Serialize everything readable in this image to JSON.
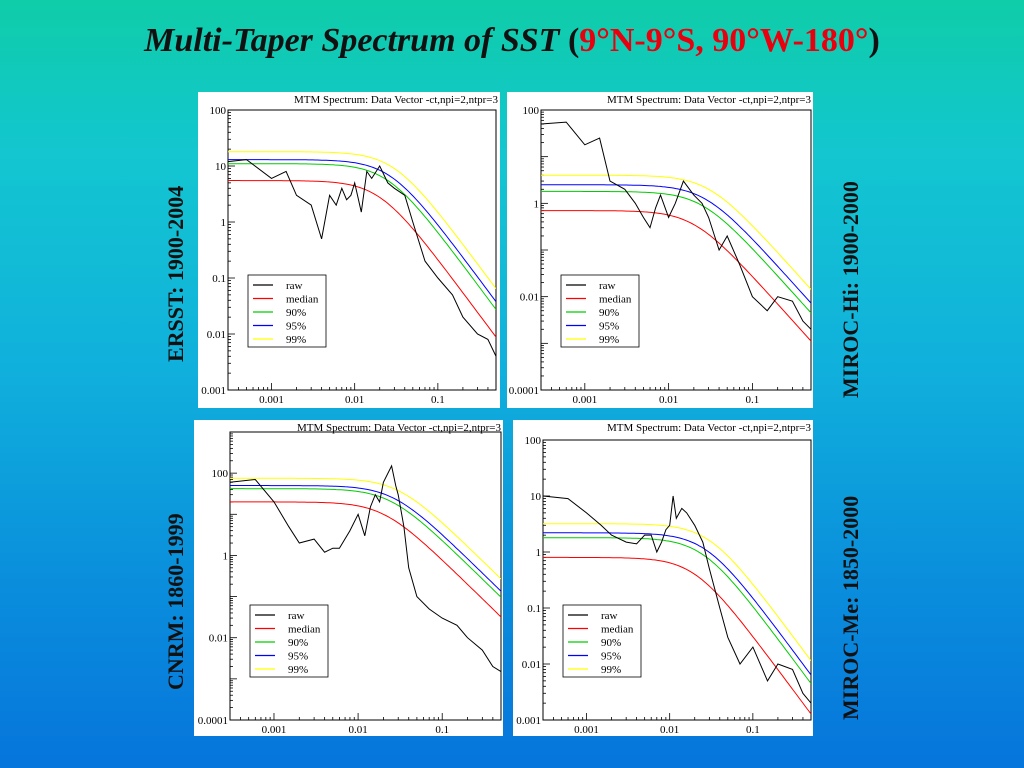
{
  "title": {
    "main": "Multi-Taper Spectrum of SST",
    "open": "(",
    "region": "9°N-9°S, 90°W-180°",
    "close": ")"
  },
  "colors": {
    "raw": "#000000",
    "median": "#ff0000",
    "p90": "#00cc00",
    "p95": "#0000ff",
    "p99": "#ffff00"
  },
  "chart_data": [
    {
      "type": "line",
      "title": "MTM Spectrum: Data Vector -ct,npi=2,ntpr=3",
      "dataset_label": "ERSST: 1900-2004",
      "xscale": "log",
      "yscale": "log",
      "xlim": [
        0.0003,
        0.5
      ],
      "ylim": [
        0.001,
        100
      ],
      "xticks": [
        "0.001",
        "0.01",
        "0.1"
      ],
      "yticks": [
        "100",
        "10",
        "1",
        "0.1",
        "0.01",
        "0.001"
      ],
      "legend": [
        "raw",
        "median",
        "90%",
        "95%",
        "99%"
      ],
      "legend_position": "bottom-left",
      "series": [
        {
          "name": "raw",
          "x": [
            0.0003,
            0.0005,
            0.001,
            0.0015,
            0.002,
            0.003,
            0.004,
            0.005,
            0.006,
            0.007,
            0.008,
            0.009,
            0.01,
            0.012,
            0.014,
            0.016,
            0.02,
            0.025,
            0.03,
            0.04,
            0.05,
            0.07,
            0.1,
            0.15,
            0.2,
            0.3,
            0.4,
            0.5
          ],
          "y": [
            12,
            13,
            6,
            8,
            3,
            2,
            0.5,
            3,
            2,
            4,
            2.5,
            3,
            5,
            1.5,
            8,
            6,
            10,
            5,
            4,
            3,
            1,
            0.2,
            0.1,
            0.05,
            0.02,
            0.01,
            0.008,
            0.004
          ]
        },
        {
          "name": "median",
          "f0": 0.02,
          "level": 5.5
        },
        {
          "name": "90%",
          "f0": 0.025,
          "level": 11
        },
        {
          "name": "95%",
          "f0": 0.027,
          "level": 13
        },
        {
          "name": "99%",
          "f0": 0.03,
          "level": 18
        }
      ]
    },
    {
      "type": "line",
      "title": "MTM Spectrum: Data Vector -ct,npi=2,ntpr=3",
      "dataset_label": "MIROC-Hi: 1900-2000",
      "xscale": "log",
      "yscale": "log",
      "xlim": [
        0.0003,
        0.5
      ],
      "ylim": [
        0.0001,
        100
      ],
      "xticks": [
        "0.001",
        "0.01",
        "0.1"
      ],
      "yticks": [
        "100",
        "1",
        "0.01",
        "0.0001"
      ],
      "legend": [
        "raw",
        "median",
        "90%",
        "95%",
        "99%"
      ],
      "legend_position": "bottom-left",
      "series": [
        {
          "name": "raw",
          "x": [
            0.0003,
            0.0006,
            0.001,
            0.0015,
            0.002,
            0.003,
            0.004,
            0.005,
            0.006,
            0.007,
            0.008,
            0.01,
            0.012,
            0.015,
            0.02,
            0.025,
            0.03,
            0.04,
            0.05,
            0.07,
            0.1,
            0.15,
            0.2,
            0.3,
            0.4,
            0.5
          ],
          "y": [
            50,
            55,
            18,
            25,
            3,
            2,
            1,
            0.5,
            0.3,
            0.8,
            1.5,
            0.5,
            1,
            3,
            1.5,
            1,
            0.5,
            0.1,
            0.2,
            0.05,
            0.01,
            0.005,
            0.01,
            0.008,
            0.003,
            0.002
          ]
        },
        {
          "name": "median",
          "f0": 0.02,
          "level": 0.7
        },
        {
          "name": "90%",
          "f0": 0.025,
          "level": 1.8
        },
        {
          "name": "95%",
          "f0": 0.027,
          "level": 2.5
        },
        {
          "name": "99%",
          "f0": 0.03,
          "level": 4
        }
      ]
    },
    {
      "type": "line",
      "title": "MTM Spectrum: Data Vector -ct,npi=2,ntpr=3",
      "dataset_label": "CNRM: 1860-1999",
      "xscale": "log",
      "yscale": "log",
      "xlim": [
        0.0003,
        0.5
      ],
      "ylim": [
        0.0001,
        1000
      ],
      "xticks": [
        "0.001",
        "0.01",
        "0.1"
      ],
      "yticks": [
        "100",
        "1",
        "0.01",
        "0.0001"
      ],
      "legend": [
        "raw",
        "median",
        "90%",
        "95%",
        "99%"
      ],
      "legend_position": "bottom-left",
      "series": [
        {
          "name": "raw",
          "x": [
            0.0003,
            0.0006,
            0.001,
            0.0015,
            0.002,
            0.003,
            0.004,
            0.005,
            0.006,
            0.008,
            0.01,
            0.012,
            0.014,
            0.016,
            0.018,
            0.02,
            0.025,
            0.028,
            0.03,
            0.035,
            0.04,
            0.05,
            0.07,
            0.1,
            0.15,
            0.2,
            0.3,
            0.4,
            0.5
          ],
          "y": [
            60,
            70,
            20,
            5,
            2,
            2.5,
            1.2,
            1.5,
            1.5,
            4,
            10,
            3,
            15,
            30,
            20,
            60,
            150,
            50,
            30,
            5,
            0.5,
            0.1,
            0.05,
            0.03,
            0.02,
            0.01,
            0.005,
            0.002,
            0.0015
          ]
        },
        {
          "name": "median",
          "f0": 0.02,
          "level": 20
        },
        {
          "name": "90%",
          "f0": 0.024,
          "level": 42
        },
        {
          "name": "95%",
          "f0": 0.026,
          "level": 50
        },
        {
          "name": "99%",
          "f0": 0.03,
          "level": 75
        }
      ]
    },
    {
      "type": "line",
      "title": "MTM Spectrum: Data Vector -ct,npi=2,ntpr=3",
      "dataset_label": "MIROC-Me: 1850-2000",
      "xscale": "log",
      "yscale": "log",
      "xlim": [
        0.0003,
        0.5
      ],
      "ylim": [
        0.001,
        100
      ],
      "xticks": [
        "0.001",
        "0.01",
        "0.1"
      ],
      "yticks": [
        "100",
        "10",
        "1",
        "0.1",
        "0.01",
        "0.001"
      ],
      "legend": [
        "raw",
        "median",
        "90%",
        "95%",
        "99%"
      ],
      "legend_position": "bottom-left",
      "series": [
        {
          "name": "raw",
          "x": [
            0.0003,
            0.0006,
            0.001,
            0.0015,
            0.002,
            0.003,
            0.004,
            0.005,
            0.006,
            0.007,
            0.008,
            0.009,
            0.01,
            0.011,
            0.012,
            0.014,
            0.016,
            0.02,
            0.025,
            0.03,
            0.04,
            0.05,
            0.07,
            0.1,
            0.15,
            0.2,
            0.3,
            0.4,
            0.5
          ],
          "y": [
            10,
            9,
            5,
            3,
            2,
            1.5,
            1.4,
            2,
            2,
            1,
            1.5,
            2.5,
            3,
            10,
            4,
            6,
            5,
            3,
            1.5,
            0.5,
            0.1,
            0.03,
            0.01,
            0.02,
            0.005,
            0.01,
            0.008,
            0.003,
            0.002
          ]
        },
        {
          "name": "median",
          "f0": 0.02,
          "level": 0.8
        },
        {
          "name": "90%",
          "f0": 0.025,
          "level": 1.8
        },
        {
          "name": "95%",
          "f0": 0.027,
          "level": 2.2
        },
        {
          "name": "99%",
          "f0": 0.03,
          "level": 3.2
        }
      ]
    }
  ]
}
